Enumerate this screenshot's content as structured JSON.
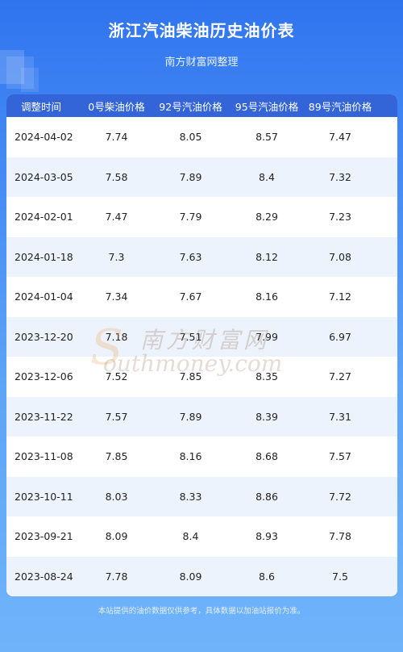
{
  "header": {
    "title": "浙江汽油柴油历史油价表",
    "subtitle": "南方财富网整理"
  },
  "table": {
    "columns": [
      "调整时间",
      "0号柴油价格",
      "92号汽油价格",
      "95号汽油价格",
      "89号汽油价格"
    ],
    "rows": [
      [
        "2024-04-02",
        "7.74",
        "8.05",
        "8.57",
        "7.47"
      ],
      [
        "2024-03-05",
        "7.58",
        "7.89",
        "8.4",
        "7.32"
      ],
      [
        "2024-02-01",
        "7.47",
        "7.79",
        "8.29",
        "7.23"
      ],
      [
        "2024-01-18",
        "7.3",
        "7.63",
        "8.12",
        "7.08"
      ],
      [
        "2024-01-04",
        "7.34",
        "7.67",
        "8.16",
        "7.12"
      ],
      [
        "2023-12-20",
        "7.18",
        "7.51",
        "7.99",
        "6.97"
      ],
      [
        "2023-12-06",
        "7.52",
        "7.85",
        "8.35",
        "7.27"
      ],
      [
        "2023-11-22",
        "7.57",
        "7.89",
        "8.39",
        "7.31"
      ],
      [
        "2023-11-08",
        "7.85",
        "8.16",
        "8.68",
        "7.57"
      ],
      [
        "2023-10-11",
        "8.03",
        "8.33",
        "8.86",
        "7.72"
      ],
      [
        "2023-09-21",
        "8.09",
        "8.4",
        "8.93",
        "7.78"
      ],
      [
        "2023-08-24",
        "7.78",
        "8.09",
        "8.6",
        "7.5"
      ]
    ]
  },
  "watermark": {
    "cn": "南方财富网",
    "en": "outhmoney.com",
    "s": "S"
  },
  "footer": {
    "note": "本站提供的油价数据仅供参考，具体数据以加油站报价为准。"
  },
  "colors": {
    "header_bg": "#3465d8",
    "row_alt": "#edf3fc",
    "page_bg": "#3f84f3"
  }
}
